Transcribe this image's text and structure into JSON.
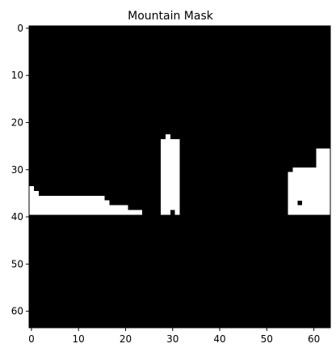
{
  "chart_data": {
    "type": "heatmap",
    "title": "Mountain Mask",
    "xlabel": "",
    "ylabel": "",
    "rows": 64,
    "cols": 64,
    "xlim": [
      -0.5,
      63.5
    ],
    "ylim": [
      63.5,
      -0.5
    ],
    "x_ticks": [
      0,
      10,
      20,
      30,
      40,
      50,
      60
    ],
    "y_ticks": [
      0,
      10,
      20,
      30,
      40,
      50,
      60
    ],
    "colormap": {
      "0": "#000000",
      "1": "#ffffff"
    },
    "grid": false,
    "mask_runs": [
      {
        "row": 23,
        "x_start": 29,
        "x_end": 29
      },
      {
        "row": 24,
        "x_start": 28,
        "x_end": 31
      },
      {
        "row": 25,
        "x_start": 28,
        "x_end": 31
      },
      {
        "row": 26,
        "x_start": 28,
        "x_end": 31
      },
      {
        "row": 26,
        "x_start": 61,
        "x_end": 63
      },
      {
        "row": 27,
        "x_start": 28,
        "x_end": 31
      },
      {
        "row": 27,
        "x_start": 61,
        "x_end": 63
      },
      {
        "row": 28,
        "x_start": 28,
        "x_end": 31
      },
      {
        "row": 28,
        "x_start": 61,
        "x_end": 63
      },
      {
        "row": 29,
        "x_start": 28,
        "x_end": 31
      },
      {
        "row": 29,
        "x_start": 61,
        "x_end": 63
      },
      {
        "row": 30,
        "x_start": 28,
        "x_end": 31
      },
      {
        "row": 30,
        "x_start": 56,
        "x_end": 63
      },
      {
        "row": 31,
        "x_start": 28,
        "x_end": 31
      },
      {
        "row": 31,
        "x_start": 55,
        "x_end": 63
      },
      {
        "row": 32,
        "x_start": 28,
        "x_end": 31
      },
      {
        "row": 32,
        "x_start": 55,
        "x_end": 63
      },
      {
        "row": 33,
        "x_start": 28,
        "x_end": 31
      },
      {
        "row": 33,
        "x_start": 55,
        "x_end": 63
      },
      {
        "row": 34,
        "x_start": 0,
        "x_end": 0
      },
      {
        "row": 34,
        "x_start": 28,
        "x_end": 31
      },
      {
        "row": 34,
        "x_start": 55,
        "x_end": 63
      },
      {
        "row": 35,
        "x_start": 0,
        "x_end": 1
      },
      {
        "row": 35,
        "x_start": 28,
        "x_end": 31
      },
      {
        "row": 35,
        "x_start": 55,
        "x_end": 63
      },
      {
        "row": 36,
        "x_start": 0,
        "x_end": 15
      },
      {
        "row": 36,
        "x_start": 28,
        "x_end": 31
      },
      {
        "row": 36,
        "x_start": 55,
        "x_end": 63
      },
      {
        "row": 37,
        "x_start": 0,
        "x_end": 16
      },
      {
        "row": 37,
        "x_start": 28,
        "x_end": 31
      },
      {
        "row": 37,
        "x_start": 55,
        "x_end": 56
      },
      {
        "row": 37,
        "x_start": 58,
        "x_end": 63
      },
      {
        "row": 38,
        "x_start": 0,
        "x_end": 20
      },
      {
        "row": 38,
        "x_start": 28,
        "x_end": 31
      },
      {
        "row": 38,
        "x_start": 55,
        "x_end": 63
      },
      {
        "row": 39,
        "x_start": 0,
        "x_end": 23
      },
      {
        "row": 39,
        "x_start": 28,
        "x_end": 29
      },
      {
        "row": 39,
        "x_start": 31,
        "x_end": 31
      },
      {
        "row": 39,
        "x_start": 55,
        "x_end": 63
      }
    ]
  }
}
